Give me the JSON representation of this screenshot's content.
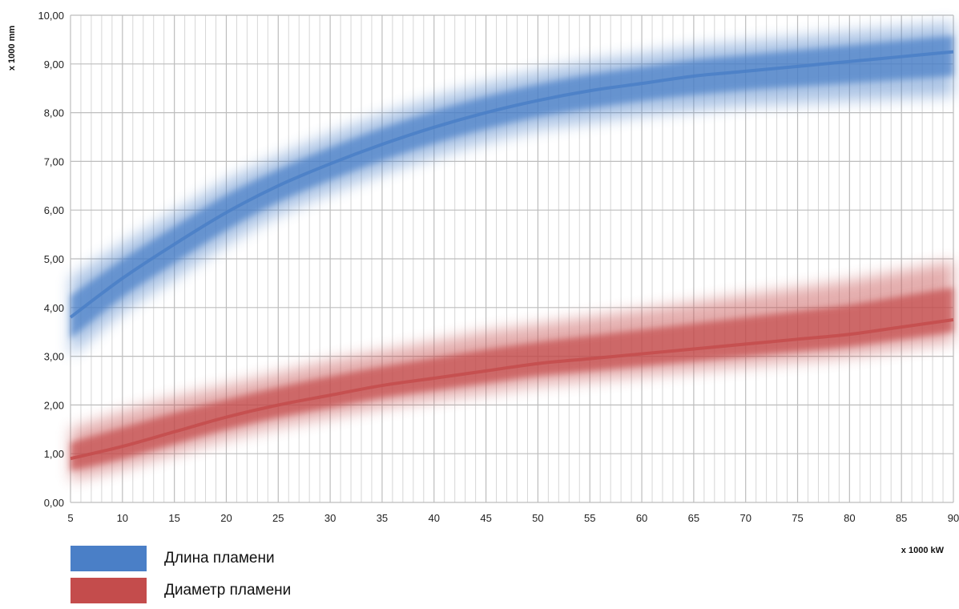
{
  "chart_data": {
    "type": "area",
    "ylabel": "x 1000 mm",
    "xlabel": "x 1000 kW",
    "xlim": [
      5,
      90
    ],
    "ylim": [
      0,
      10
    ],
    "x_ticks": [
      "5",
      "10",
      "15",
      "20",
      "25",
      "30",
      "35",
      "40",
      "45",
      "50",
      "55",
      "60",
      "65",
      "70",
      "75",
      "80",
      "85",
      "90"
    ],
    "y_ticks": [
      "0,00",
      "1,00",
      "2,00",
      "3,00",
      "4,00",
      "5,00",
      "6,00",
      "7,00",
      "8,00",
      "9,00",
      "10,00"
    ],
    "grid": true,
    "legend_position": "bottom-left",
    "x": [
      5,
      10,
      15,
      20,
      25,
      30,
      35,
      40,
      45,
      50,
      55,
      60,
      65,
      70,
      75,
      80,
      85,
      90
    ],
    "series": [
      {
        "name": "Длина пламени",
        "color": "#4a7fc7",
        "values": [
          3.8,
          4.6,
          5.3,
          5.95,
          6.5,
          6.95,
          7.35,
          7.7,
          8.0,
          8.25,
          8.45,
          8.6,
          8.75,
          8.85,
          8.95,
          9.05,
          9.15,
          9.25
        ],
        "band_lower": [
          3.0,
          3.9,
          4.6,
          5.3,
          5.9,
          6.35,
          6.75,
          7.1,
          7.4,
          7.65,
          7.8,
          7.95,
          8.05,
          8.15,
          8.2,
          8.25,
          8.3,
          8.35
        ],
        "band_upper": [
          4.6,
          5.3,
          5.95,
          6.6,
          7.1,
          7.55,
          7.95,
          8.3,
          8.6,
          8.85,
          9.05,
          9.2,
          9.35,
          9.45,
          9.55,
          9.65,
          9.75,
          9.85
        ]
      },
      {
        "name": "Диаметр пламени",
        "color": "#c44c4c",
        "values": [
          0.9,
          1.15,
          1.45,
          1.75,
          2.0,
          2.2,
          2.4,
          2.55,
          2.7,
          2.85,
          2.95,
          3.05,
          3.15,
          3.25,
          3.35,
          3.45,
          3.6,
          3.75
        ],
        "band_lower": [
          0.45,
          0.7,
          1.0,
          1.3,
          1.55,
          1.75,
          1.95,
          2.1,
          2.25,
          2.4,
          2.5,
          2.6,
          2.7,
          2.8,
          2.9,
          3.0,
          3.15,
          3.3
        ],
        "band_upper": [
          1.5,
          1.85,
          2.15,
          2.4,
          2.65,
          2.9,
          3.1,
          3.3,
          3.5,
          3.65,
          3.8,
          3.95,
          4.1,
          4.25,
          4.4,
          4.55,
          4.75,
          4.95
        ]
      }
    ]
  }
}
